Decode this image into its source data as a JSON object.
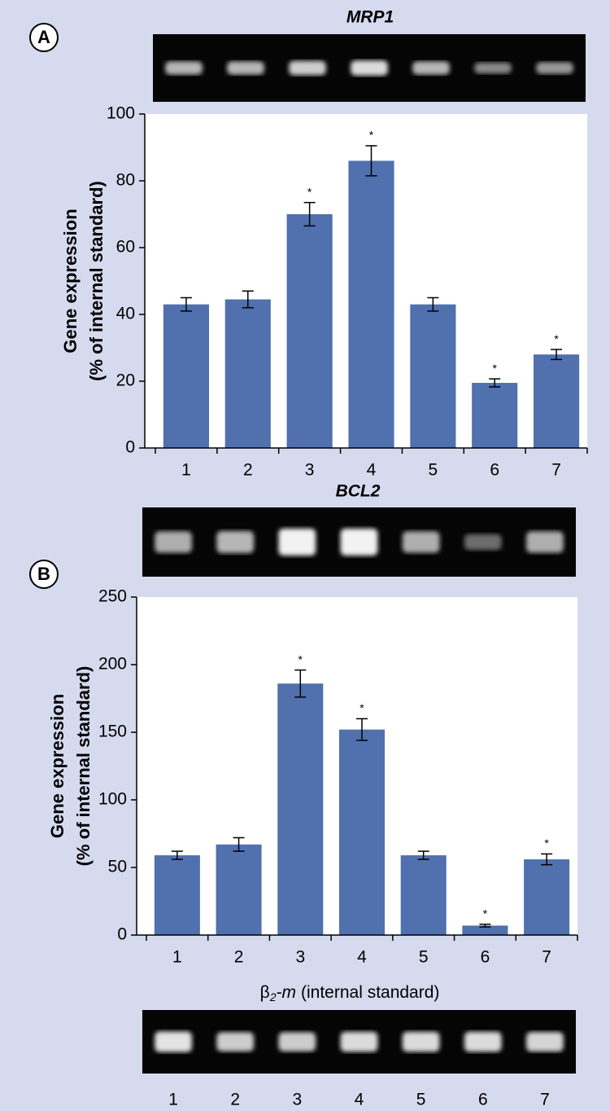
{
  "chart_data": [
    {
      "type": "bar",
      "categories": [
        "1",
        "2",
        "3",
        "4",
        "5",
        "6",
        "7"
      ],
      "values": [
        43,
        44.5,
        70,
        86,
        43,
        19.5,
        28
      ],
      "errors": [
        2,
        2.5,
        3.5,
        4.5,
        2,
        1.2,
        1.5
      ],
      "markers": [
        null,
        null,
        "*",
        "*",
        null,
        "*",
        "*"
      ],
      "color": "#5070ae",
      "ylabel": [
        "Gene expression",
        "(% of internal standard)"
      ],
      "ylim": [
        0,
        100
      ],
      "yticks": [
        0,
        20,
        40,
        60,
        80,
        100
      ]
    },
    {
      "type": "bar",
      "categories": [
        "1",
        "2",
        "3",
        "4",
        "5",
        "6",
        "7"
      ],
      "values": [
        59,
        67,
        186,
        152,
        59,
        7,
        56
      ],
      "errors": [
        3,
        5,
        10,
        8,
        3,
        1,
        4
      ],
      "markers": [
        null,
        null,
        "*",
        "*",
        null,
        "*",
        "*"
      ],
      "color": "#5070ae",
      "ylabel": [
        "Gene expression",
        "(% of internal standard)"
      ],
      "ylim": [
        0,
        250
      ],
      "yticks": [
        0,
        50,
        100,
        150,
        200,
        250
      ]
    }
  ],
  "figure": {
    "panel_labels": [
      "A",
      "B"
    ],
    "gel_titles": [
      "MRP1",
      "BCL2"
    ],
    "standard_title": {
      "symbol": "β",
      "subscript": "2",
      "gene": "-m",
      "note": "(internal standard)"
    },
    "lanes": [
      "1",
      "2",
      "3",
      "4",
      "5",
      "6",
      "7"
    ]
  }
}
